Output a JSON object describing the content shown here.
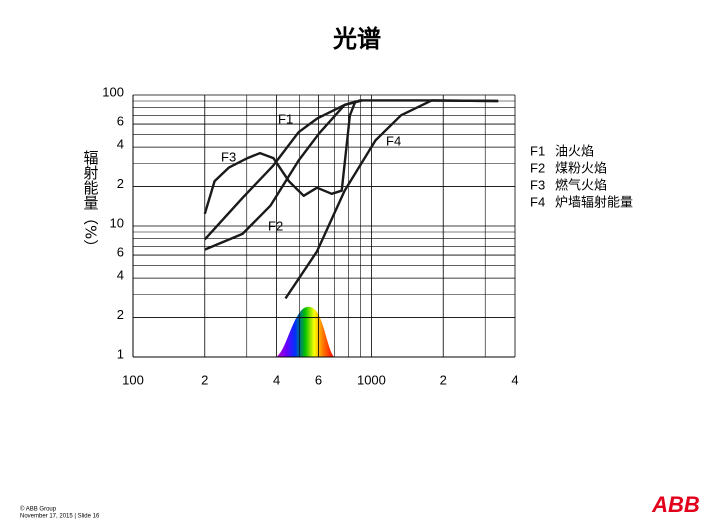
{
  "chart_data": {
    "type": "line",
    "title": "光谱",
    "y_label": "辐射能量（%）",
    "log_x": true,
    "log_y": true,
    "xlim": [
      100,
      4000
    ],
    "ylim": [
      1,
      100
    ],
    "xticks": [
      {
        "value": 100,
        "label": "100"
      },
      {
        "value": 200,
        "label": "2"
      },
      {
        "value": 400,
        "label": "4"
      },
      {
        "value": 600,
        "label": "6"
      },
      {
        "value": 1000,
        "label": "1000"
      },
      {
        "value": 2000,
        "label": "2"
      },
      {
        "value": 4000,
        "label": "4"
      }
    ],
    "x_minor_ticks": [
      300,
      500,
      700,
      800,
      900,
      3000
    ],
    "yticks": [
      {
        "value": 1,
        "label": "1"
      },
      {
        "value": 2,
        "label": "2"
      },
      {
        "value": 4,
        "label": "4"
      },
      {
        "value": 6,
        "label": "6"
      },
      10,
      {
        "value": 20,
        "label": "2"
      },
      {
        "value": 40,
        "label": "4"
      },
      {
        "value": 60,
        "label": "6"
      },
      100
    ],
    "y_minor_ticks": [
      3,
      5,
      7,
      8,
      9,
      30,
      50,
      70,
      80,
      90
    ],
    "grid": true,
    "series": [
      {
        "name": "F1",
        "description": "油火焰",
        "color": "#1a1a1a",
        "x": [
          200,
          288,
          388,
          495,
          591,
          772,
          897,
          1700,
          3400
        ],
        "values": [
          7.9,
          16.4,
          29,
          52,
          66,
          84,
          91,
          91,
          90
        ]
      },
      {
        "name": "F2",
        "description": "煤粉火焰",
        "color": "#1a1a1a",
        "x": [
          200,
          288,
          377,
          495,
          604,
          772,
          915
        ],
        "values": [
          6.6,
          8.7,
          14.3,
          31.6,
          51,
          84,
          91
        ]
      },
      {
        "name": "F3",
        "description": "燃气火焰",
        "color": "#1a1a1a",
        "x": [
          200,
          220,
          253,
          302,
          341,
          388,
          450,
          520,
          591,
          681,
          750,
          812,
          860
        ],
        "values": [
          12.4,
          22,
          28,
          33,
          36,
          33,
          22,
          17,
          19.6,
          17.6,
          18.6,
          70,
          91
        ]
      },
      {
        "name": "F4",
        "description": "炉墙辐射能量",
        "color": "#1a1a1a",
        "x": [
          436,
          591,
          772,
          1040,
          1330,
          1790,
          3400
        ],
        "values": [
          2.8,
          6.4,
          18.6,
          45,
          70,
          91,
          90
        ]
      }
    ]
  },
  "footer": {
    "copyright": "© ABB Group",
    "date": "November 17, 2015 | Slide 16",
    "logo": "ABB"
  }
}
